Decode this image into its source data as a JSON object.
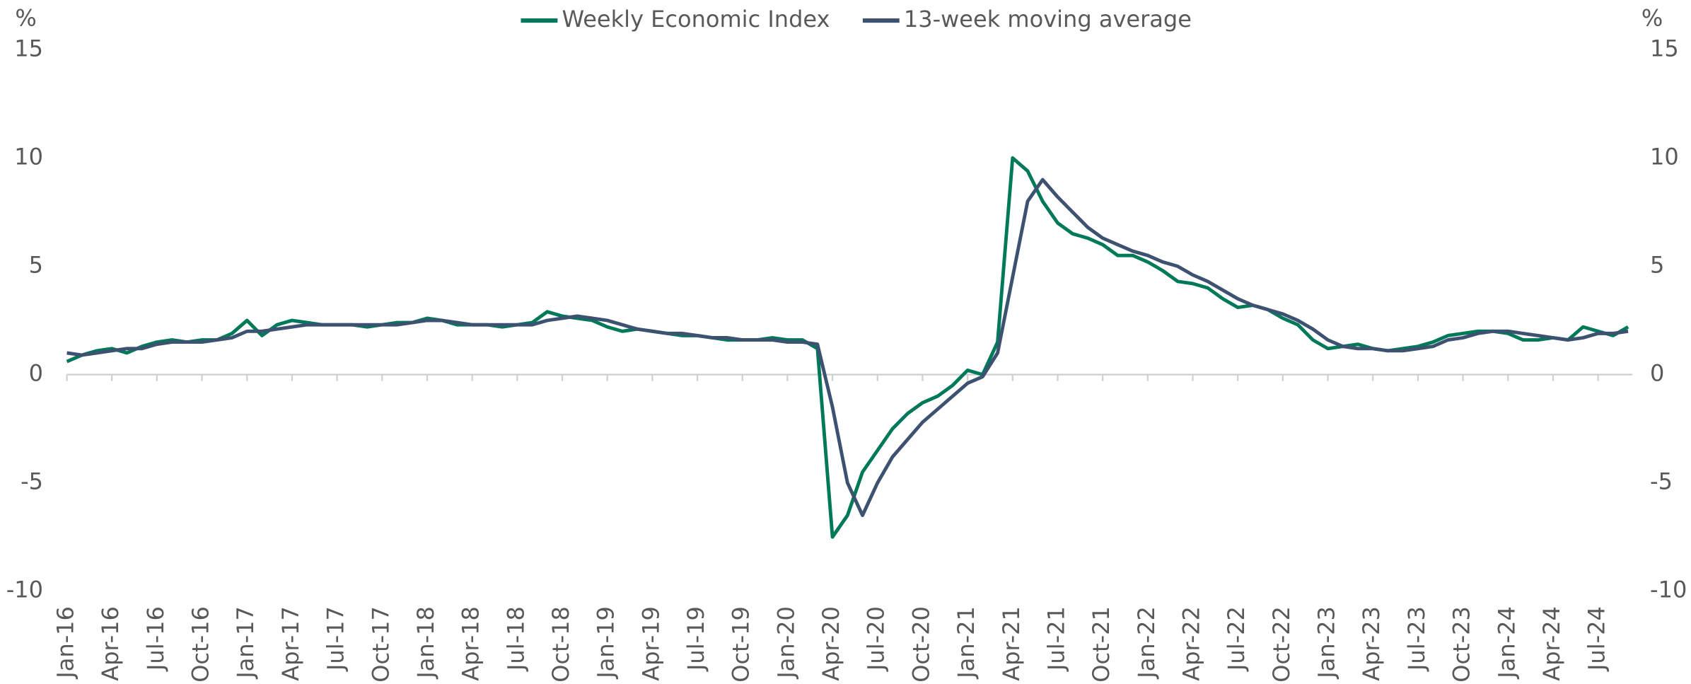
{
  "chart_data": {
    "type": "line",
    "y_label": "%",
    "y2_label": "%",
    "categories": [
      "Jan-16",
      null,
      null,
      "Apr-16",
      null,
      null,
      "Jul-16",
      null,
      null,
      "Oct-16",
      null,
      null,
      "Jan-17",
      null,
      null,
      "Apr-17",
      null,
      null,
      "Jul-17",
      null,
      null,
      "Oct-17",
      null,
      null,
      "Jan-18",
      null,
      null,
      "Apr-18",
      null,
      null,
      "Jul-18",
      null,
      null,
      "Oct-18",
      null,
      null,
      "Jan-19",
      null,
      null,
      "Apr-19",
      null,
      null,
      "Jul-19",
      null,
      null,
      "Oct-19",
      null,
      null,
      "Jan-20",
      null,
      null,
      "Apr-20",
      null,
      null,
      "Jul-20",
      null,
      null,
      "Oct-20",
      null,
      null,
      "Jan-21",
      null,
      null,
      "Apr-21",
      null,
      null,
      "Jul-21",
      null,
      null,
      "Oct-21",
      null,
      null,
      "Jan-22",
      null,
      null,
      "Apr-22",
      null,
      null,
      "Jul-22",
      null,
      null,
      "Oct-22",
      null,
      null,
      "Jan-23",
      null,
      null,
      "Apr-23",
      null,
      null,
      "Jul-23",
      null,
      null,
      "Oct-23",
      null,
      null,
      "Jan-24",
      null,
      null,
      "Apr-24",
      null,
      null,
      "Jul-24",
      null,
      null
    ],
    "series": [
      {
        "name": "Weekly Economic Index",
        "color": "#00785a",
        "values": [
          0.6,
          0.9,
          1.1,
          1.2,
          1.0,
          1.3,
          1.5,
          1.6,
          1.5,
          1.6,
          1.6,
          1.9,
          2.5,
          1.8,
          2.3,
          2.5,
          2.4,
          2.3,
          2.3,
          2.3,
          2.2,
          2.3,
          2.4,
          2.4,
          2.6,
          2.5,
          2.3,
          2.3,
          2.3,
          2.2,
          2.3,
          2.4,
          2.9,
          2.7,
          2.6,
          2.5,
          2.2,
          2.0,
          2.1,
          2.0,
          1.9,
          1.8,
          1.8,
          1.7,
          1.6,
          1.6,
          1.6,
          1.7,
          1.6,
          1.6,
          1.2,
          -7.5,
          -6.5,
          -4.5,
          -3.5,
          -2.5,
          -1.8,
          -1.3,
          -1.0,
          -0.5,
          0.2,
          0.0,
          1.5,
          10.0,
          9.4,
          8.0,
          7.0,
          6.5,
          6.3,
          6.0,
          5.5,
          5.5,
          5.2,
          4.8,
          4.3,
          4.2,
          4.0,
          3.5,
          3.1,
          3.2,
          3.0,
          2.6,
          2.3,
          1.6,
          1.2,
          1.3,
          1.4,
          1.2,
          1.1,
          1.2,
          1.3,
          1.5,
          1.8,
          1.9,
          2.0,
          2.0,
          1.9,
          1.6,
          1.6,
          1.7,
          1.6,
          2.2,
          2.0,
          1.8,
          2.2
        ]
      },
      {
        "name": "13-week moving average",
        "color": "#3d5170",
        "values": [
          1.0,
          0.9,
          1.0,
          1.1,
          1.2,
          1.2,
          1.4,
          1.5,
          1.5,
          1.5,
          1.6,
          1.7,
          2.0,
          2.0,
          2.1,
          2.2,
          2.3,
          2.3,
          2.3,
          2.3,
          2.3,
          2.3,
          2.3,
          2.4,
          2.5,
          2.5,
          2.4,
          2.3,
          2.3,
          2.3,
          2.3,
          2.3,
          2.5,
          2.6,
          2.7,
          2.6,
          2.5,
          2.3,
          2.1,
          2.0,
          1.9,
          1.9,
          1.8,
          1.7,
          1.7,
          1.6,
          1.6,
          1.6,
          1.5,
          1.5,
          1.4,
          -1.5,
          -5.0,
          -6.5,
          -5.0,
          -3.8,
          -3.0,
          -2.2,
          -1.6,
          -1.0,
          -0.4,
          -0.1,
          1.0,
          4.5,
          8.0,
          9.0,
          8.2,
          7.5,
          6.8,
          6.3,
          6.0,
          5.7,
          5.5,
          5.2,
          5.0,
          4.6,
          4.3,
          3.9,
          3.5,
          3.2,
          3.0,
          2.8,
          2.5,
          2.1,
          1.6,
          1.3,
          1.2,
          1.2,
          1.1,
          1.1,
          1.2,
          1.3,
          1.6,
          1.7,
          1.9,
          2.0,
          2.0,
          1.9,
          1.8,
          1.7,
          1.6,
          1.7,
          1.9,
          1.9,
          2.0
        ]
      }
    ],
    "ylim": [
      -10,
      15
    ],
    "yticks": [
      -10,
      -5,
      0,
      5,
      10,
      15
    ],
    "y2lim": [
      -10,
      15
    ],
    "y2ticks": [
      -10,
      -5,
      0,
      5,
      10,
      15
    ],
    "grid": false,
    "legend": "top"
  }
}
